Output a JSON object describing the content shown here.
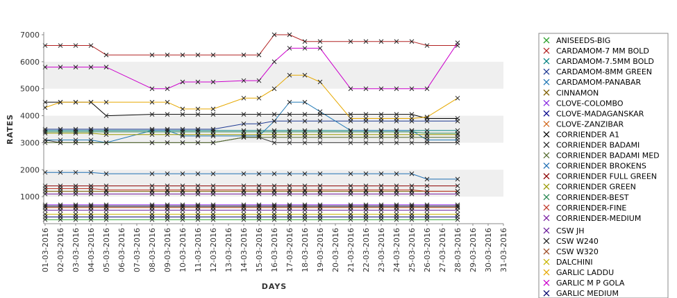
{
  "chart_data": {
    "type": "line",
    "xlabel": "DAYS",
    "ylabel": "RATES",
    "ylim": [
      0,
      7000
    ],
    "yticks": [
      1000,
      2000,
      3000,
      4000,
      5000,
      6000,
      7000
    ],
    "grid": "alternating horizontal bands",
    "legend_position": "right",
    "categories": [
      "01-03-2016",
      "02-03-2016",
      "03-03-2016",
      "04-03-2016",
      "05-03-2016",
      "06-03-2016",
      "07-03-2016",
      "08-03-2016",
      "09-03-2016",
      "10-03-2016",
      "11-03-2016",
      "12-03-2016",
      "13-03-2016",
      "14-03-2016",
      "15-03-2016",
      "16-03-2016",
      "17-03-2016",
      "18-03-2016",
      "19-03-2016",
      "20-03-2016",
      "21-03-2016",
      "22-03-2016",
      "23-03-2016",
      "24-03-2016",
      "25-03-2016",
      "26-03-2016",
      "27-03-2016",
      "28-03-2016",
      "29-03-2016",
      "30-03-2016",
      "31-03-2016"
    ],
    "series": [
      {
        "name": "ANISEEDS-BIG",
        "color": "#2ca02c",
        "values": [
          150,
          150,
          150,
          150,
          150,
          null,
          null,
          150,
          150,
          150,
          150,
          150,
          null,
          150,
          150,
          150,
          150,
          150,
          150,
          null,
          150,
          150,
          150,
          150,
          150,
          150,
          null,
          150,
          null,
          null,
          null
        ]
      },
      {
        "name": "CARDAMOM-7 MM BOLD",
        "color": "#b22222",
        "values": [
          6600,
          6600,
          6600,
          6600,
          6250,
          null,
          null,
          6250,
          6250,
          6250,
          6250,
          6250,
          null,
          6250,
          6250,
          7000,
          7000,
          6750,
          6750,
          null,
          6750,
          6750,
          6750,
          6750,
          6750,
          6600,
          null,
          6600,
          null,
          null,
          null
        ]
      },
      {
        "name": "CARDAMOM-7.5MM BOLD",
        "color": "#008080",
        "values": [
          3450,
          3450,
          3450,
          3450,
          3450,
          null,
          null,
          3450,
          3450,
          3450,
          3450,
          3450,
          null,
          3450,
          3450,
          3450,
          3450,
          3450,
          3450,
          null,
          3450,
          3450,
          3450,
          3450,
          3450,
          3450,
          null,
          3450,
          null,
          null,
          null
        ]
      },
      {
        "name": "CARDAMOM-8MM GREEN",
        "color": "#1f3a93",
        "values": [
          3500,
          3500,
          3500,
          3500,
          3500,
          null,
          null,
          3500,
          3500,
          3500,
          3500,
          3500,
          null,
          3700,
          3700,
          3800,
          3800,
          3800,
          3800,
          null,
          3800,
          3800,
          3800,
          3800,
          3800,
          3800,
          null,
          3800,
          null,
          null,
          null
        ]
      },
      {
        "name": "CARDAMOM-PANABAR",
        "color": "#1f77b4",
        "values": [
          3100,
          3100,
          3100,
          3100,
          3000,
          null,
          null,
          3450,
          3450,
          3250,
          3250,
          3250,
          null,
          3250,
          3250,
          3800,
          4500,
          4500,
          4150,
          null,
          3450,
          3450,
          3450,
          3450,
          3450,
          3100,
          null,
          3100,
          null,
          null,
          null
        ]
      },
      {
        "name": "CINNAMON",
        "color": "#806000",
        "values": [
          1200,
          1200,
          1200,
          1200,
          1200,
          null,
          null,
          1200,
          1200,
          1200,
          1200,
          1200,
          null,
          1200,
          1200,
          1200,
          1200,
          1200,
          1200,
          null,
          1200,
          1200,
          1200,
          1200,
          1200,
          1200,
          null,
          1200,
          null,
          null,
          null
        ]
      },
      {
        "name": "CLOVE-COLOMBO",
        "color": "#8a2be2",
        "values": [
          700,
          700,
          700,
          700,
          700,
          null,
          null,
          700,
          700,
          700,
          700,
          700,
          null,
          700,
          700,
          700,
          700,
          700,
          700,
          null,
          700,
          700,
          700,
          700,
          700,
          700,
          null,
          700,
          null,
          null,
          null
        ]
      },
      {
        "name": "CLOVE-MADAGANSKAR",
        "color": "#00008b",
        "values": [
          650,
          650,
          650,
          650,
          650,
          null,
          null,
          650,
          650,
          650,
          650,
          650,
          null,
          650,
          650,
          650,
          650,
          650,
          650,
          null,
          650,
          650,
          650,
          650,
          650,
          650,
          null,
          650,
          null,
          null,
          null
        ]
      },
      {
        "name": "CLOVE-ZANZIBAR",
        "color": "#d2691e",
        "values": [
          600,
          600,
          600,
          600,
          600,
          null,
          null,
          600,
          600,
          600,
          600,
          600,
          null,
          600,
          600,
          600,
          600,
          600,
          600,
          null,
          600,
          600,
          600,
          600,
          600,
          600,
          null,
          600,
          null,
          null,
          null
        ]
      },
      {
        "name": "CORRIENDER A1",
        "color": "#000000",
        "values": [
          4500,
          4500,
          4500,
          4500,
          4000,
          null,
          null,
          4050,
          4050,
          4050,
          4050,
          4050,
          null,
          4050,
          4050,
          4050,
          4050,
          4050,
          4050,
          null,
          4050,
          4050,
          4050,
          4050,
          4050,
          3900,
          null,
          3900,
          null,
          null,
          null
        ]
      },
      {
        "name": "CORRIENDER BADAMI",
        "color": "#333333",
        "values": [
          3100,
          3000,
          3000,
          3000,
          3000,
          null,
          null,
          3000,
          3000,
          3000,
          3000,
          3000,
          null,
          3200,
          3200,
          3000,
          3000,
          3000,
          3000,
          null,
          3000,
          3000,
          3000,
          3000,
          3000,
          3000,
          null,
          3000,
          null,
          null,
          null
        ]
      },
      {
        "name": "CORRIENDER BADAMI MED",
        "color": "#556b2f",
        "values": [
          3000,
          3000,
          3000,
          3000,
          3000,
          null,
          null,
          3000,
          3000,
          3000,
          3000,
          3000,
          null,
          3200,
          3200,
          3200,
          3200,
          3200,
          3200,
          null,
          3200,
          3200,
          3200,
          3200,
          3200,
          3200,
          null,
          3200,
          null,
          null,
          null
        ]
      },
      {
        "name": "CORRIENDER BROKENS",
        "color": "#1f6fb4",
        "values": [
          1900,
          1900,
          1900,
          1900,
          1850,
          null,
          null,
          1850,
          1850,
          1850,
          1850,
          1850,
          null,
          1850,
          1850,
          1850,
          1850,
          1850,
          1850,
          null,
          1850,
          1850,
          1850,
          1850,
          1850,
          1650,
          null,
          1650,
          null,
          null,
          null
        ]
      },
      {
        "name": "CORRIENDER FULL GREEN",
        "color": "#8b0000",
        "values": [
          1400,
          1400,
          1400,
          1400,
          1400,
          null,
          null,
          1400,
          1400,
          1400,
          1400,
          1400,
          null,
          1400,
          1400,
          1400,
          1400,
          1400,
          1400,
          null,
          1400,
          1400,
          1400,
          1400,
          1400,
          1400,
          null,
          1400,
          null,
          null,
          null
        ]
      },
      {
        "name": "CORRIENDER GREEN",
        "color": "#999900",
        "values": [
          3350,
          3350,
          3350,
          3350,
          3300,
          null,
          null,
          3300,
          3300,
          3300,
          3300,
          3300,
          null,
          3300,
          3300,
          3300,
          3300,
          3300,
          3300,
          null,
          3300,
          3300,
          3300,
          3300,
          3300,
          3300,
          null,
          3300,
          null,
          null,
          null
        ]
      },
      {
        "name": "CORRIENDER-BEST",
        "color": "#2e8b57",
        "values": [
          3400,
          3400,
          3400,
          3400,
          3400,
          null,
          null,
          3400,
          3400,
          3400,
          3400,
          3400,
          null,
          3400,
          3400,
          3400,
          3400,
          3400,
          3400,
          null,
          3400,
          3400,
          3400,
          3400,
          3400,
          3350,
          null,
          3350,
          null,
          null,
          null
        ]
      },
      {
        "name": "CORRIENDER-FINE",
        "color": "#c0392b",
        "values": [
          1300,
          1300,
          1300,
          1300,
          1250,
          null,
          null,
          1250,
          1250,
          1250,
          1250,
          1250,
          null,
          1250,
          1250,
          1250,
          1250,
          1250,
          1250,
          null,
          1250,
          1250,
          1250,
          1250,
          1250,
          1200,
          null,
          1200,
          null,
          null,
          null
        ]
      },
      {
        "name": "CORRIENDER-MEDIUM",
        "color": "#7b1fa2",
        "values": [
          1100,
          1100,
          1100,
          1100,
          1100,
          null,
          null,
          1100,
          1100,
          1100,
          1100,
          1100,
          null,
          1100,
          1100,
          1100,
          1100,
          1100,
          1100,
          null,
          1100,
          1100,
          1100,
          1100,
          1100,
          1100,
          null,
          1100,
          null,
          null,
          null
        ]
      },
      {
        "name": "CSW JH",
        "color": "#6a1b9a",
        "values": [
          500,
          500,
          500,
          500,
          500,
          null,
          null,
          500,
          500,
          500,
          500,
          500,
          null,
          500,
          500,
          500,
          500,
          500,
          500,
          null,
          500,
          500,
          500,
          500,
          500,
          500,
          null,
          500,
          null,
          null,
          null
        ]
      },
      {
        "name": "CSW W240",
        "color": "#222222",
        "values": [
          650,
          650,
          650,
          650,
          650,
          null,
          null,
          650,
          650,
          650,
          650,
          650,
          null,
          650,
          650,
          650,
          650,
          650,
          650,
          null,
          650,
          650,
          650,
          650,
          650,
          650,
          null,
          650,
          null,
          null,
          null
        ]
      },
      {
        "name": "CSW W320",
        "color": "#a0522d",
        "values": [
          600,
          600,
          600,
          600,
          600,
          null,
          null,
          600,
          600,
          600,
          600,
          600,
          null,
          600,
          600,
          600,
          600,
          600,
          600,
          null,
          600,
          600,
          600,
          600,
          600,
          600,
          null,
          600,
          null,
          null,
          null
        ]
      },
      {
        "name": "DALCHINI",
        "color": "#c8b400",
        "values": [
          350,
          350,
          350,
          350,
          350,
          null,
          null,
          350,
          350,
          350,
          350,
          350,
          null,
          350,
          350,
          350,
          350,
          350,
          350,
          null,
          350,
          350,
          350,
          350,
          350,
          350,
          null,
          350,
          null,
          null,
          null
        ]
      },
      {
        "name": "GARLIC LADDU",
        "color": "#e6a800",
        "values": [
          4300,
          4500,
          4500,
          4500,
          4500,
          null,
          null,
          4500,
          4500,
          4250,
          4250,
          4250,
          null,
          4650,
          4650,
          5000,
          5500,
          5500,
          5250,
          null,
          3900,
          3900,
          3900,
          3900,
          3900,
          3950,
          null,
          4650,
          null,
          null,
          null
        ]
      },
      {
        "name": "GARLIC M P GOLA",
        "color": "#cc00cc",
        "values": [
          5800,
          5800,
          5800,
          5800,
          5800,
          null,
          null,
          5000,
          5000,
          5250,
          5250,
          5250,
          null,
          5300,
          5300,
          6000,
          6500,
          6500,
          6500,
          null,
          5000,
          5000,
          5000,
          5000,
          5000,
          5000,
          null,
          6700,
          null,
          null,
          null
        ]
      },
      {
        "name": "GARLIC MEDIUM",
        "color": "#00006b",
        "values": [
          250,
          250,
          250,
          250,
          250,
          null,
          null,
          250,
          250,
          250,
          250,
          250,
          null,
          250,
          250,
          250,
          250,
          250,
          250,
          null,
          250,
          250,
          250,
          250,
          250,
          250,
          null,
          250,
          null,
          null,
          null
        ]
      }
    ]
  }
}
